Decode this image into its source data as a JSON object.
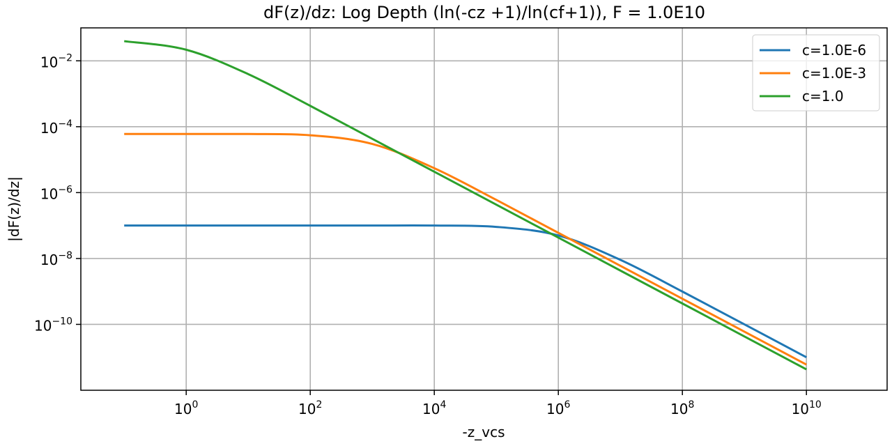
{
  "chart_data": {
    "type": "line",
    "title": "dF(z)/dz: Log Depth (ln(-cz +1)/ln(cf+1)), F = 1.0E10",
    "xlabel": "-z_vcs",
    "ylabel": "|dF(z)/dz|",
    "x_scale": "log",
    "y_scale": "log",
    "xlim": [
      0.02,
      200000000000
    ],
    "ylim": [
      1e-12,
      0.1
    ],
    "x_ticks": [
      {
        "value": 1,
        "base": "10",
        "exp": "0"
      },
      {
        "value": 100,
        "base": "10",
        "exp": "2"
      },
      {
        "value": 10000,
        "base": "10",
        "exp": "4"
      },
      {
        "value": 1000000,
        "base": "10",
        "exp": "6"
      },
      {
        "value": 100000000,
        "base": "10",
        "exp": "8"
      },
      {
        "value": 10000000000,
        "base": "10",
        "exp": "10"
      }
    ],
    "y_ticks": [
      {
        "value": 0.01,
        "base": "10",
        "exp": "−2"
      },
      {
        "value": 0.0001,
        "base": "10",
        "exp": "−4"
      },
      {
        "value": 1e-06,
        "base": "10",
        "exp": "−6"
      },
      {
        "value": 1e-08,
        "base": "10",
        "exp": "−8"
      },
      {
        "value": 1e-10,
        "base": "10",
        "exp": "−10"
      }
    ],
    "grid": true,
    "legend_position": "top-right",
    "series": [
      {
        "name": "c=1.0E-6",
        "color": "#1f77b4",
        "x": [
          0.1,
          1,
          10,
          100,
          1000,
          10000,
          100000,
          1000000,
          10000000,
          100000000,
          1000000000,
          10000000000
        ],
        "y": [
          1e-07,
          1e-07,
          1e-07,
          1e-07,
          1e-07,
          1e-07,
          9.1e-08,
          5e-08,
          9.1e-09,
          9.9e-10,
          1e-10,
          1e-11
        ]
      },
      {
        "name": "c=1.0E-3",
        "color": "#ff7f0e",
        "x": [
          0.1,
          1,
          10,
          100,
          1000,
          10000,
          100000,
          1000000,
          10000000,
          100000000,
          1000000000,
          10000000000
        ],
        "y": [
          6e-05,
          6e-05,
          6e-05,
          5.5e-05,
          3e-05,
          5.5e-06,
          6e-07,
          6e-08,
          6e-09,
          6e-10,
          6e-11,
          6e-12
        ]
      },
      {
        "name": "c=1.0",
        "color": "#2ca02c",
        "x": [
          0.1,
          1,
          10,
          100,
          1000,
          10000,
          100000,
          1000000,
          10000000,
          100000000,
          1000000000,
          10000000000
        ],
        "y": [
          0.0395,
          0.0217,
          0.00395,
          0.00043,
          4.3e-05,
          4.3e-06,
          4.3e-07,
          4.3e-08,
          4.3e-09,
          4.3e-10,
          4.3e-11,
          4.3e-12
        ]
      }
    ]
  }
}
